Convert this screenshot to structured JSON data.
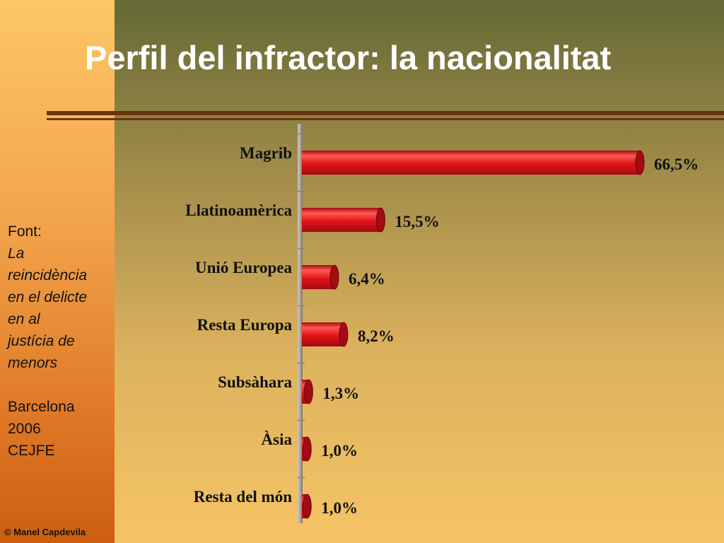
{
  "slide": {
    "title": "Perfil del infractor: la nacionalitat",
    "source": {
      "label": "Font:",
      "publication": [
        "La",
        "reincidència",
        "en el delicte",
        "en al",
        "justícia de",
        "menors"
      ],
      "place": "Barcelona",
      "year": "2006",
      "org": "CEJFE"
    },
    "copyright": "© Manel Capdevila"
  },
  "colors": {
    "bar": "#e01418",
    "bar_dark": "#a30b12",
    "bar_highlight": "#ff5a52",
    "axis": "#8a8074",
    "title": "#ffffff"
  },
  "chart_data": {
    "type": "bar",
    "orientation": "horizontal",
    "style": "3d-cylinder",
    "categories": [
      "Magrib",
      "Llatinoamèrica",
      "Unió Europea",
      "Resta Europa",
      "Subsàhara",
      "Àsia",
      "Resta del món"
    ],
    "values": [
      66.5,
      15.5,
      6.4,
      8.2,
      1.3,
      1.0,
      1.0
    ],
    "value_labels": [
      "66,5%",
      "15,5%",
      "6,4%",
      "8,2%",
      "1,3%",
      "1,0%",
      "1,0%"
    ],
    "xlim": [
      0,
      66.5
    ],
    "grid": false,
    "legend": "none"
  }
}
